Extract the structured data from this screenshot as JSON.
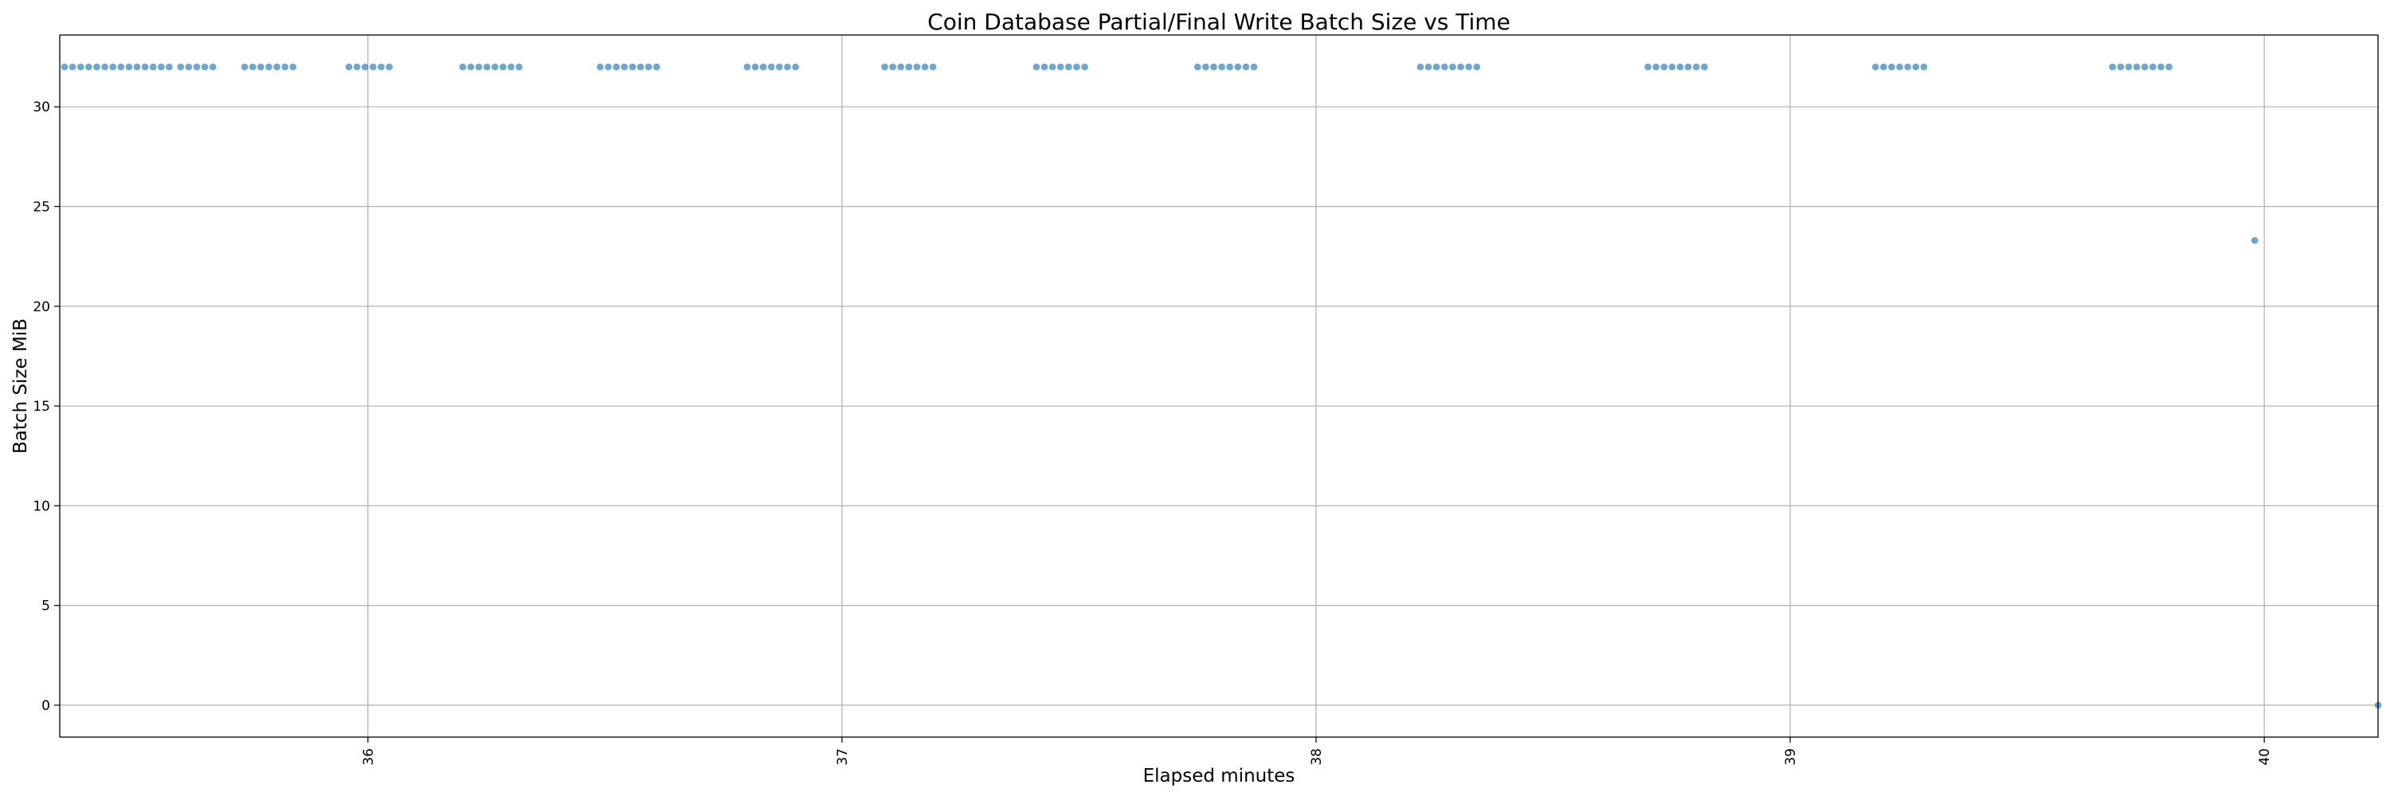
{
  "chart_data": {
    "type": "scatter",
    "title": "Coin Database Partial/Final Write Batch Size vs Time",
    "xlabel": "Elapsed minutes",
    "ylabel": "Batch Size MiB",
    "xlim": [
      35.35,
      40.24
    ],
    "ylim": [
      -1.6,
      33.6
    ],
    "xticks": [
      36,
      37,
      38,
      39,
      40
    ],
    "xtick_labels": [
      "36",
      "37",
      "38",
      "39",
      "40"
    ],
    "xtick_rotation": 90,
    "yticks": [
      0,
      5,
      10,
      15,
      20,
      25,
      30
    ],
    "ytick_labels": [
      "0",
      "5",
      "10",
      "15",
      "20",
      "25",
      "30"
    ],
    "grid": true,
    "legend": "none",
    "color": "#1f77b4",
    "series": [
      {
        "x": [
          35.36,
          35.377,
          35.394,
          35.411,
          35.428,
          35.445,
          35.462,
          35.479,
          35.496,
          35.513,
          35.53,
          35.547,
          35.564,
          35.581,
          35.605,
          35.622,
          35.639,
          35.656,
          35.673,
          35.74,
          35.757,
          35.774,
          35.791,
          35.808,
          35.825,
          35.842,
          35.96,
          35.977,
          35.994,
          36.011,
          36.028,
          36.045,
          36.2,
          36.217,
          36.234,
          36.251,
          36.268,
          36.285,
          36.302,
          36.319,
          36.49,
          36.507,
          36.524,
          36.541,
          36.558,
          36.575,
          36.592,
          36.609,
          36.8,
          36.817,
          36.834,
          36.851,
          36.868,
          36.885,
          36.902,
          37.09,
          37.107,
          37.124,
          37.141,
          37.158,
          37.175,
          37.192,
          37.41,
          37.427,
          37.444,
          37.461,
          37.478,
          37.495,
          37.512,
          37.75,
          37.767,
          37.784,
          37.801,
          37.818,
          37.835,
          37.852,
          37.869,
          38.22,
          38.237,
          38.254,
          38.271,
          38.288,
          38.305,
          38.322,
          38.339,
          38.7,
          38.717,
          38.734,
          38.751,
          38.768,
          38.785,
          38.802,
          38.819,
          39.18,
          39.197,
          39.214,
          39.231,
          39.248,
          39.265,
          39.282,
          39.68,
          39.697,
          39.714,
          39.731,
          39.748,
          39.765,
          39.782,
          39.799,
          39.98,
          40.24
        ],
        "y": [
          32,
          32,
          32,
          32,
          32,
          32,
          32,
          32,
          32,
          32,
          32,
          32,
          32,
          32,
          32,
          32,
          32,
          32,
          32,
          32,
          32,
          32,
          32,
          32,
          32,
          32,
          32,
          32,
          32,
          32,
          32,
          32,
          32,
          32,
          32,
          32,
          32,
          32,
          32,
          32,
          32,
          32,
          32,
          32,
          32,
          32,
          32,
          32,
          32,
          32,
          32,
          32,
          32,
          32,
          32,
          32,
          32,
          32,
          32,
          32,
          32,
          32,
          32,
          32,
          32,
          32,
          32,
          32,
          32,
          32,
          32,
          32,
          32,
          32,
          32,
          32,
          32,
          32,
          32,
          32,
          32,
          32,
          32,
          32,
          32,
          32,
          32,
          32,
          32,
          32,
          32,
          32,
          32,
          32,
          32,
          32,
          32,
          32,
          32,
          32,
          32,
          32,
          32,
          32,
          32,
          32,
          32,
          32,
          23.3,
          0
        ]
      }
    ]
  }
}
